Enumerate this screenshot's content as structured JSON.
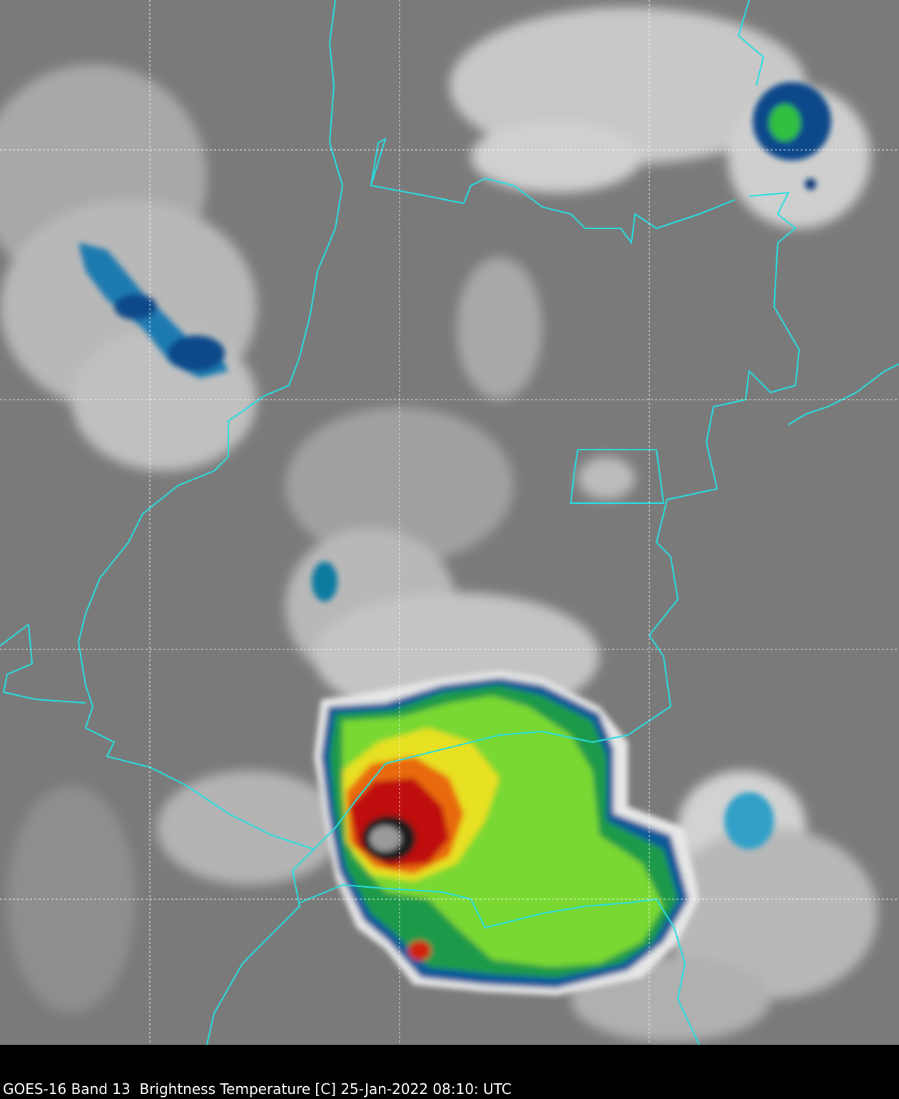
{
  "caption": "GOES-16 Band 13  Brightness Temperature [C] 25-Jan-2022 08:10: UTC"
}
